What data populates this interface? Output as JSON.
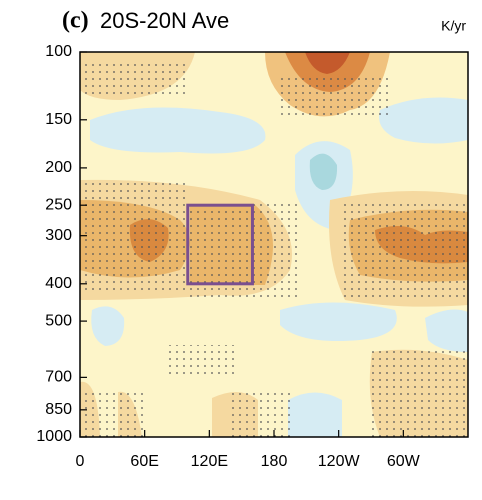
{
  "chart_data": {
    "type": "contour",
    "panel": "(c)",
    "title": "20S-20N Ave",
    "units": "K/yr",
    "xlim": [
      0,
      360
    ],
    "xticks": [
      0,
      {
        "value": 60,
        "label": "60E"
      },
      {
        "value": 120,
        "label": "120E"
      },
      180,
      {
        "value": 240,
        "label": "120W"
      },
      {
        "value": 300,
        "label": "60W"
      }
    ],
    "ylim": [
      1000,
      100
    ],
    "ylog": true,
    "yticks": [
      100,
      150,
      200,
      250,
      300,
      400,
      500,
      700,
      850,
      1000
    ],
    "box": {
      "color": "#7a4f8f",
      "lon": [
        100,
        160
      ],
      "pressure": [
        250,
        400
      ]
    }
  }
}
